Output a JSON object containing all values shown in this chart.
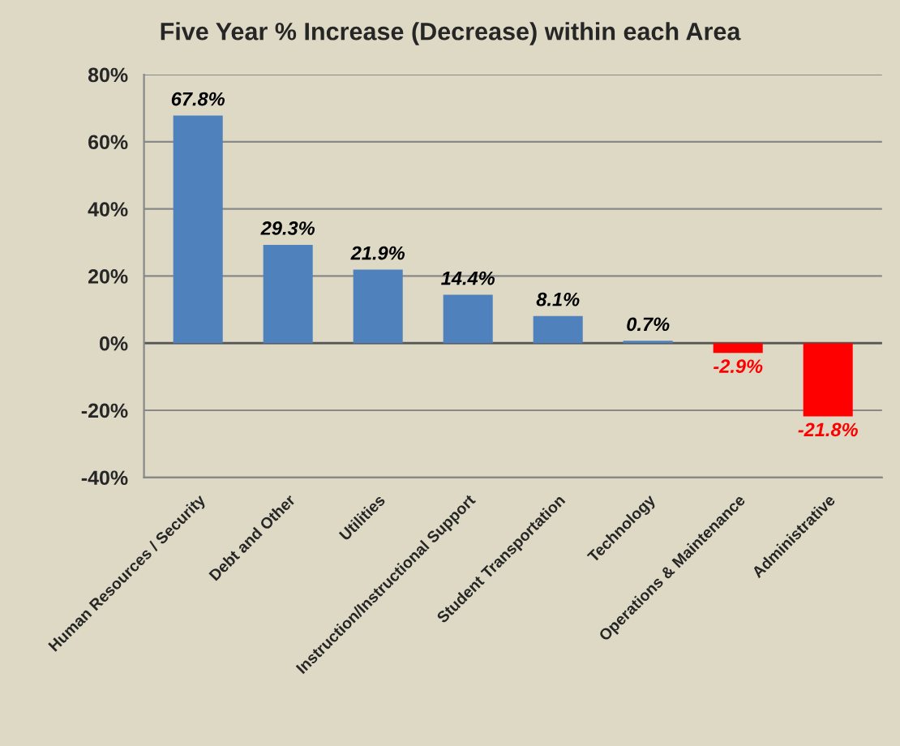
{
  "chart_data": {
    "type": "bar",
    "title": "Five Year % Increase (Decrease) within each Area",
    "categories": [
      "Human Resources / Security",
      "Debt and Other",
      "Utilities",
      "Instruction/Instructional Support",
      "Student Transportation",
      "Technology",
      "Operations & Maintenance",
      "Administrative"
    ],
    "values": [
      67.8,
      29.3,
      21.9,
      14.4,
      8.1,
      0.7,
      -2.9,
      -21.8
    ],
    "colors": [
      "#4f81bd",
      "#4f81bd",
      "#4f81bd",
      "#4f81bd",
      "#4f81bd",
      "#4f81bd",
      "#ff0000",
      "#ff0000"
    ],
    "value_labels": [
      "67.8%",
      "29.3%",
      "21.9%",
      "14.4%",
      "8.1%",
      "0.7%",
      "-2.9%",
      "-21.8%"
    ],
    "ylim": [
      -40,
      80
    ],
    "yticks": [
      {
        "value": -40,
        "label": "-40%"
      },
      {
        "value": -20,
        "label": "-20%"
      },
      {
        "value": 0,
        "label": "0%"
      },
      {
        "value": 20,
        "label": "20%"
      },
      {
        "value": 40,
        "label": "40%"
      },
      {
        "value": 60,
        "label": "60%"
      },
      {
        "value": 80,
        "label": "80%"
      }
    ],
    "grid": "y",
    "legend": false
  }
}
